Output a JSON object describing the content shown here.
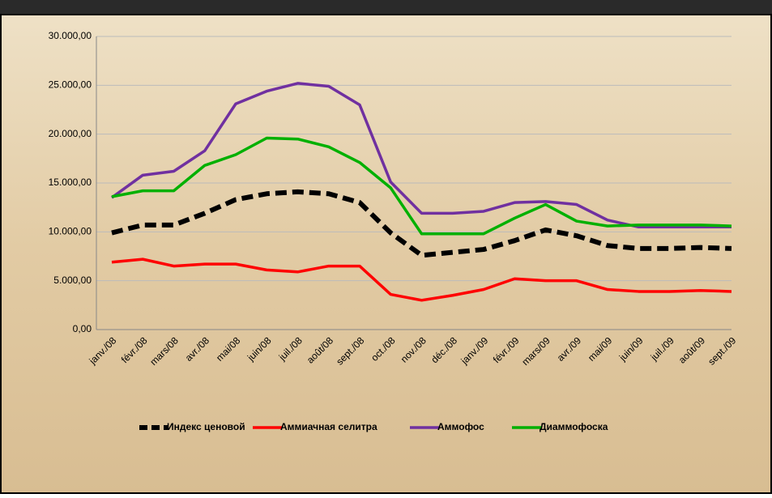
{
  "chart_data": {
    "type": "line",
    "categories": [
      "janv./08",
      "févr./08",
      "mars/08",
      "avr./08",
      "mai/08",
      "juin/08",
      "juil./08",
      "août/08",
      "sept./08",
      "oct./08",
      "nov./08",
      "déc./08",
      "janv./09",
      "févr./09",
      "mars/09",
      "avr./09",
      "mai/09",
      "juin/09",
      "juil./09",
      "août/09",
      "sept./09"
    ],
    "series": [
      {
        "name": "Индекс ценовой",
        "color": "#000000",
        "dashed": true,
        "values": [
          9900,
          10700,
          10700,
          11900,
          13300,
          13900,
          14100,
          13900,
          13000,
          9900,
          7600,
          7900,
          8200,
          9100,
          10200,
          9600,
          8600,
          8300,
          8300,
          8400,
          8300
        ]
      },
      {
        "name": "Аммиачная селитра",
        "color": "#ff0000",
        "values": [
          6900,
          7200,
          6500,
          6700,
          6700,
          6100,
          5900,
          6500,
          6500,
          3600,
          3000,
          3500,
          4100,
          5200,
          5000,
          5000,
          4100,
          3900,
          3900,
          4000,
          3900
        ]
      },
      {
        "name": "Аммофос",
        "color": "#7030a0",
        "values": [
          13500,
          15800,
          16200,
          18300,
          23100,
          24400,
          25200,
          24900,
          23000,
          15100,
          11900,
          11900,
          12100,
          13000,
          13100,
          12800,
          11200,
          10500,
          10500,
          10500,
          10500
        ]
      },
      {
        "name": "Диаммофоска",
        "color": "#00b000",
        "values": [
          13600,
          14200,
          14200,
          16800,
          17900,
          19600,
          19500,
          18700,
          17100,
          14500,
          9800,
          9800,
          9800,
          11400,
          12800,
          11100,
          10600,
          10700,
          10700,
          10700,
          10600
        ]
      }
    ],
    "ylim": [
      0,
      30000
    ],
    "yticks": [
      {
        "value": 0,
        "label": "0,00"
      },
      {
        "value": 5000,
        "label": "5.000,00"
      },
      {
        "value": 10000,
        "label": "10.000,00"
      },
      {
        "value": 15000,
        "label": "15.000,00"
      },
      {
        "value": 20000,
        "label": "20.000,00"
      },
      {
        "value": 25000,
        "label": "25.000,00"
      },
      {
        "value": 30000,
        "label": "30.000,00"
      }
    ],
    "grid": true,
    "legend": "bottom"
  }
}
